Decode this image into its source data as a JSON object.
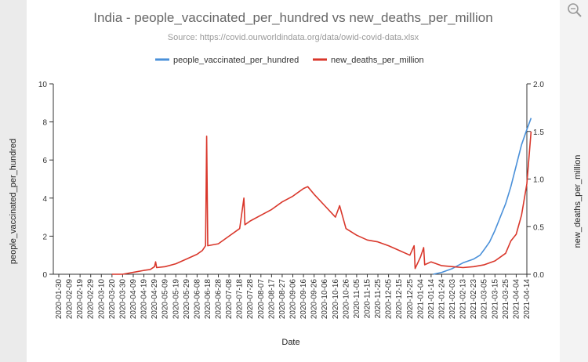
{
  "chart_data": {
    "type": "line",
    "title": "India - people_vaccinated_per_hundred vs new_deaths_per_million",
    "subtitle": "Source: https://covid.ourworldindata.org/data/owid-covid-data.xlsx",
    "xlabel": "Date",
    "ylabel_left": "people_vaccinated_per_hundred",
    "ylabel_right": "new_deaths_per_million",
    "legend_position": "top-center",
    "ylim_left": [
      0,
      10
    ],
    "ylim_right": [
      0,
      2
    ],
    "yticks_left": [
      "0",
      "2",
      "4",
      "6",
      "8",
      "10"
    ],
    "yticks_right": [
      "0.0",
      "0.5",
      "1.0",
      "1.5",
      "2.0"
    ],
    "x_tick_labels": [
      "2020-01-30",
      "2020-02-09",
      "2020-02-19",
      "2020-02-29",
      "2020-03-10",
      "2020-03-20",
      "2020-03-30",
      "2020-04-09",
      "2020-04-19",
      "2020-04-29",
      "2020-05-09",
      "2020-05-19",
      "2020-05-29",
      "2020-06-08",
      "2020-06-18",
      "2020-06-28",
      "2020-07-08",
      "2020-07-18",
      "2020-07-28",
      "2020-08-07",
      "2020-08-17",
      "2020-08-27",
      "2020-09-06",
      "2020-09-16",
      "2020-09-26",
      "2020-10-06",
      "2020-10-16",
      "2020-10-26",
      "2020-11-05",
      "2020-11-15",
      "2020-11-25",
      "2020-12-05",
      "2020-12-15",
      "2020-12-25",
      "2021-01-04",
      "2021-01-14",
      "2021-01-24",
      "2021-02-03",
      "2021-02-13",
      "2021-02-23",
      "2021-03-05",
      "2021-03-15",
      "2021-03-25",
      "2021-04-04",
      "2021-04-14"
    ],
    "series": [
      {
        "name": "people_vaccinated_per_hundred",
        "axis": "left",
        "color": "#4a90d9",
        "points": [
          [
            "2021-01-16",
            0
          ],
          [
            "2021-01-24",
            0.1
          ],
          [
            "2021-02-03",
            0.3
          ],
          [
            "2021-02-13",
            0.6
          ],
          [
            "2021-02-23",
            0.8
          ],
          [
            "2021-03-01",
            1.0
          ],
          [
            "2021-03-05",
            1.3
          ],
          [
            "2021-03-10",
            1.7
          ],
          [
            "2021-03-15",
            2.3
          ],
          [
            "2021-03-20",
            3.0
          ],
          [
            "2021-03-25",
            3.7
          ],
          [
            "2021-03-30",
            4.6
          ],
          [
            "2021-04-04",
            5.7
          ],
          [
            "2021-04-09",
            6.8
          ],
          [
            "2021-04-14",
            7.6
          ],
          [
            "2021-04-18",
            8.2
          ]
        ]
      },
      {
        "name": "new_deaths_per_million",
        "axis": "right",
        "color": "#d9372b",
        "points": [
          [
            "2020-03-20",
            0
          ],
          [
            "2020-03-30",
            0
          ],
          [
            "2020-04-09",
            0.02
          ],
          [
            "2020-04-19",
            0.04
          ],
          [
            "2020-04-25",
            0.05
          ],
          [
            "2020-04-29",
            0.08
          ],
          [
            "2020-04-30",
            0.13
          ],
          [
            "2020-05-01",
            0.07
          ],
          [
            "2020-05-09",
            0.08
          ],
          [
            "2020-05-19",
            0.11
          ],
          [
            "2020-05-29",
            0.16
          ],
          [
            "2020-06-08",
            0.21
          ],
          [
            "2020-06-13",
            0.25
          ],
          [
            "2020-06-16",
            0.3
          ],
          [
            "2020-06-17",
            1.45
          ],
          [
            "2020-06-18",
            0.3
          ],
          [
            "2020-06-28",
            0.32
          ],
          [
            "2020-07-08",
            0.4
          ],
          [
            "2020-07-18",
            0.48
          ],
          [
            "2020-07-22",
            0.8
          ],
          [
            "2020-07-23",
            0.52
          ],
          [
            "2020-07-28",
            0.56
          ],
          [
            "2020-08-07",
            0.62
          ],
          [
            "2020-08-17",
            0.68
          ],
          [
            "2020-08-27",
            0.76
          ],
          [
            "2020-09-06",
            0.82
          ],
          [
            "2020-09-16",
            0.9
          ],
          [
            "2020-09-20",
            0.92
          ],
          [
            "2020-09-26",
            0.84
          ],
          [
            "2020-10-06",
            0.72
          ],
          [
            "2020-10-16",
            0.6
          ],
          [
            "2020-10-20",
            0.72
          ],
          [
            "2020-10-26",
            0.48
          ],
          [
            "2020-11-05",
            0.41
          ],
          [
            "2020-11-15",
            0.36
          ],
          [
            "2020-11-25",
            0.34
          ],
          [
            "2020-12-05",
            0.3
          ],
          [
            "2020-12-15",
            0.25
          ],
          [
            "2020-12-25",
            0.2
          ],
          [
            "2020-12-29",
            0.3
          ],
          [
            "2020-12-30",
            0.06
          ],
          [
            "2021-01-04",
            0.18
          ],
          [
            "2021-01-07",
            0.28
          ],
          [
            "2021-01-08",
            0.1
          ],
          [
            "2021-01-14",
            0.13
          ],
          [
            "2021-01-24",
            0.09
          ],
          [
            "2021-02-03",
            0.08
          ],
          [
            "2021-02-13",
            0.07
          ],
          [
            "2021-02-23",
            0.08
          ],
          [
            "2021-03-05",
            0.1
          ],
          [
            "2021-03-15",
            0.14
          ],
          [
            "2021-03-25",
            0.22
          ],
          [
            "2021-03-30",
            0.35
          ],
          [
            "2021-04-04",
            0.42
          ],
          [
            "2021-04-09",
            0.62
          ],
          [
            "2021-04-14",
            0.95
          ],
          [
            "2021-04-18",
            1.5
          ]
        ]
      }
    ]
  },
  "ui": {
    "zoom_icon": "magnifier-icon"
  }
}
